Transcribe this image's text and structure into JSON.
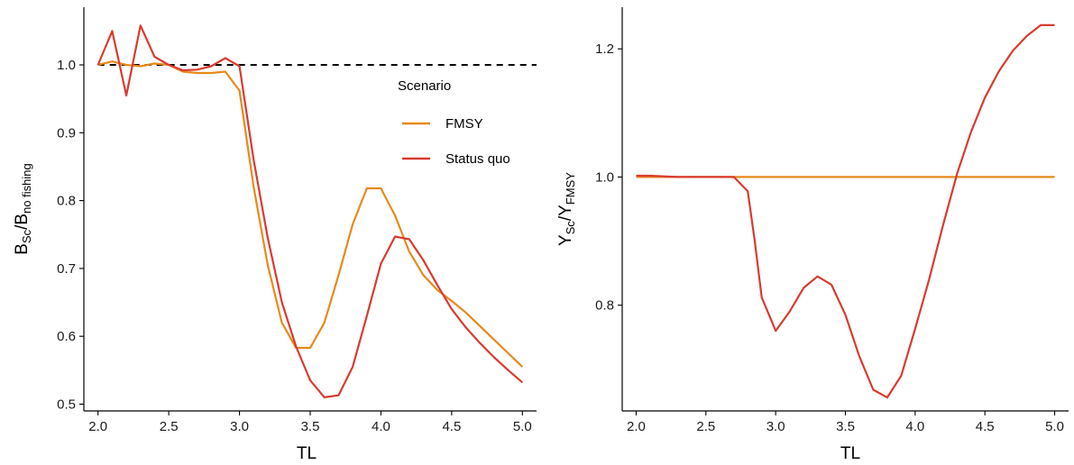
{
  "chart_data": [
    {
      "type": "line",
      "xlabel": "TL",
      "ylabel": {
        "main1": "B",
        "sub1": "Sc",
        "sep": "/",
        "main2": "B",
        "sub2": "no fishing"
      },
      "xlim": [
        1.9,
        5.1
      ],
      "ylim": [
        0.49,
        1.085
      ],
      "x_ticks": [
        "2.0",
        "2.5",
        "3.0",
        "3.5",
        "4.0",
        "4.5",
        "5.0"
      ],
      "y_ticks": [
        "0.5",
        "0.6",
        "0.7",
        "0.8",
        "0.9",
        "1.0"
      ],
      "reference_line": {
        "y": 1.0,
        "style": "dashed"
      },
      "legend": {
        "title": "Scenario",
        "position": "right, upper-middle"
      },
      "series": [
        {
          "name": "FMSY",
          "color": "#E8891C",
          "x": [
            2.0,
            2.1,
            2.2,
            2.3,
            2.4,
            2.5,
            2.6,
            2.7,
            2.8,
            2.9,
            3.0,
            3.1,
            3.2,
            3.3,
            3.4,
            3.5,
            3.6,
            3.7,
            3.8,
            3.9,
            4.0,
            4.1,
            4.2,
            4.3,
            4.4,
            4.5,
            4.6,
            4.7,
            4.8,
            4.9,
            5.0
          ],
          "y": [
            1.0,
            1.005,
            1.0,
            0.998,
            1.002,
            1.0,
            0.99,
            0.988,
            0.988,
            0.99,
            0.962,
            0.82,
            0.705,
            0.62,
            0.583,
            0.583,
            0.62,
            0.69,
            0.765,
            0.818,
            0.818,
            0.778,
            0.725,
            0.69,
            0.668,
            0.652,
            0.635,
            0.615,
            0.595,
            0.575,
            0.555
          ]
        },
        {
          "name": "Status quo",
          "color": "#D93B30",
          "x": [
            2.0,
            2.1,
            2.2,
            2.3,
            2.4,
            2.5,
            2.6,
            2.7,
            2.8,
            2.9,
            3.0,
            3.1,
            3.2,
            3.3,
            3.4,
            3.5,
            3.6,
            3.7,
            3.8,
            3.9,
            4.0,
            4.1,
            4.2,
            4.3,
            4.4,
            4.5,
            4.6,
            4.7,
            4.8,
            4.9,
            5.0
          ],
          "y": [
            1.0,
            1.05,
            0.955,
            1.058,
            1.012,
            1.0,
            0.992,
            0.993,
            0.998,
            1.01,
            0.998,
            0.86,
            0.745,
            0.65,
            0.585,
            0.535,
            0.51,
            0.513,
            0.555,
            0.63,
            0.707,
            0.747,
            0.743,
            0.712,
            0.675,
            0.64,
            0.613,
            0.59,
            0.569,
            0.55,
            0.532
          ]
        }
      ]
    },
    {
      "type": "line",
      "xlabel": "TL",
      "ylabel": {
        "main1": "Y",
        "sub1": "Sc",
        "sep": "/",
        "main2": "Y",
        "sub2": "FMSY"
      },
      "xlim": [
        1.9,
        5.1
      ],
      "ylim": [
        0.635,
        1.265
      ],
      "x_ticks": [
        "2.0",
        "2.5",
        "3.0",
        "3.5",
        "4.0",
        "4.5",
        "5.0"
      ],
      "y_ticks": [
        "0.8",
        "1.0",
        "1.2"
      ],
      "series": [
        {
          "name": "FMSY",
          "color": "#E8891C",
          "x": [
            2.0,
            5.0
          ],
          "y": [
            1.0,
            1.0
          ]
        },
        {
          "name": "Status quo",
          "color": "#D93B30",
          "x": [
            2.0,
            2.1,
            2.2,
            2.3,
            2.4,
            2.5,
            2.6,
            2.7,
            2.8,
            2.85,
            2.9,
            3.0,
            3.1,
            3.2,
            3.3,
            3.4,
            3.5,
            3.6,
            3.7,
            3.8,
            3.9,
            4.0,
            4.1,
            4.2,
            4.3,
            4.4,
            4.5,
            4.6,
            4.7,
            4.8,
            4.9,
            5.0
          ],
          "y": [
            1.002,
            1.002,
            1.001,
            1.0,
            1.0,
            1.0,
            1.0,
            1.0,
            0.978,
            0.9,
            0.812,
            0.76,
            0.79,
            0.827,
            0.845,
            0.832,
            0.785,
            0.72,
            0.668,
            0.656,
            0.69,
            0.763,
            0.84,
            0.925,
            1.005,
            1.07,
            1.124,
            1.165,
            1.197,
            1.22,
            1.237,
            1.237
          ]
        }
      ]
    }
  ]
}
